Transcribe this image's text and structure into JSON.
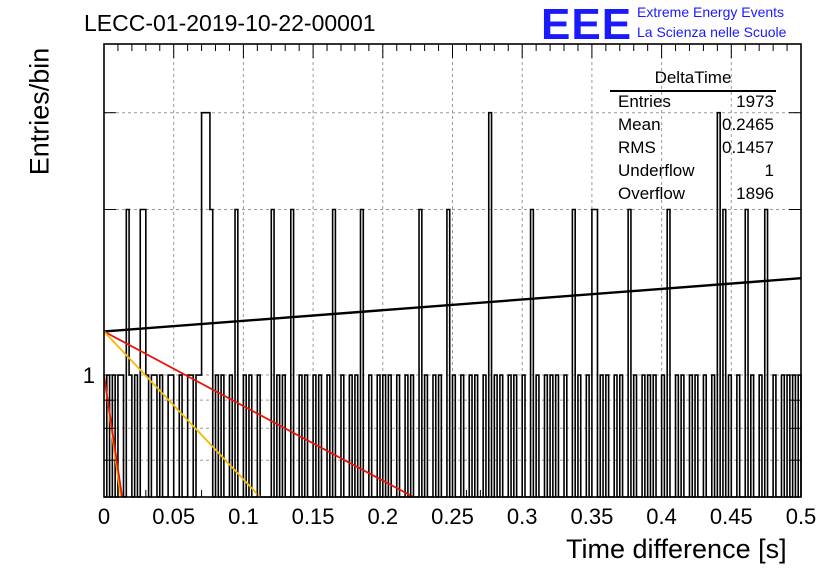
{
  "title": "LECC-01-2019-10-22-00001",
  "logo": {
    "mark": "EEE",
    "line1": "Extreme Energy Events",
    "line2": "La Scienza nelle Scuole"
  },
  "stats_box": {
    "title": "DeltaTime",
    "rows": [
      {
        "label": "Entries",
        "value": "1973"
      },
      {
        "label": "Mean",
        "value": "0.2465"
      },
      {
        "label": "RMS",
        "value": "0.1457"
      },
      {
        "label": "Underflow",
        "value": "1"
      },
      {
        "label": "Overflow",
        "value": "1896"
      }
    ]
  },
  "colors": {
    "histogram": "#000000",
    "fit_black": "#000000",
    "fit_red": "#e8140c",
    "fit_orange": "#f5b800",
    "grid": "#9a9a9a"
  },
  "chart_data": {
    "type": "histogram",
    "title": "LECC-01-2019-10-22-00001",
    "xlabel": "Time difference [s]",
    "ylabel": "Entries/bin",
    "xlim": [
      0,
      0.5
    ],
    "ylim": [
      0.6,
      4
    ],
    "yscale": "log",
    "xticks": [
      "0",
      "0.05",
      "0.1",
      "0.15",
      "0.2",
      "0.25",
      "0.3",
      "0.35",
      "0.4",
      "0.45",
      "0.5"
    ],
    "yticks": [
      "1"
    ],
    "grid": true,
    "bin_width": 0.002,
    "bins": [
      {
        "x": 0.002,
        "y": 1
      },
      {
        "x": 0.006,
        "y": 1
      },
      {
        "x": 0.01,
        "y": 1
      },
      {
        "x": 0.012,
        "y": 1
      },
      {
        "x": 0.016,
        "y": 2
      },
      {
        "x": 0.018,
        "y": 1
      },
      {
        "x": 0.022,
        "y": 1
      },
      {
        "x": 0.026,
        "y": 2
      },
      {
        "x": 0.028,
        "y": 2
      },
      {
        "x": 0.03,
        "y": 1
      },
      {
        "x": 0.034,
        "y": 1
      },
      {
        "x": 0.036,
        "y": 1
      },
      {
        "x": 0.04,
        "y": 1
      },
      {
        "x": 0.046,
        "y": 1
      },
      {
        "x": 0.048,
        "y": 1
      },
      {
        "x": 0.054,
        "y": 1
      },
      {
        "x": 0.06,
        "y": 1
      },
      {
        "x": 0.062,
        "y": 1
      },
      {
        "x": 0.066,
        "y": 1
      },
      {
        "x": 0.068,
        "y": 1
      },
      {
        "x": 0.07,
        "y": 3
      },
      {
        "x": 0.072,
        "y": 3
      },
      {
        "x": 0.074,
        "y": 3
      },
      {
        "x": 0.076,
        "y": 2
      },
      {
        "x": 0.08,
        "y": 1
      },
      {
        "x": 0.084,
        "y": 1
      },
      {
        "x": 0.09,
        "y": 1
      },
      {
        "x": 0.094,
        "y": 2
      },
      {
        "x": 0.1,
        "y": 1
      },
      {
        "x": 0.104,
        "y": 1
      },
      {
        "x": 0.11,
        "y": 1
      },
      {
        "x": 0.12,
        "y": 2
      },
      {
        "x": 0.124,
        "y": 1
      },
      {
        "x": 0.128,
        "y": 1
      },
      {
        "x": 0.134,
        "y": 2
      },
      {
        "x": 0.14,
        "y": 1
      },
      {
        "x": 0.144,
        "y": 1
      },
      {
        "x": 0.15,
        "y": 1
      },
      {
        "x": 0.154,
        "y": 1
      },
      {
        "x": 0.16,
        "y": 1
      },
      {
        "x": 0.164,
        "y": 2
      },
      {
        "x": 0.17,
        "y": 1
      },
      {
        "x": 0.176,
        "y": 1
      },
      {
        "x": 0.18,
        "y": 1
      },
      {
        "x": 0.184,
        "y": 2
      },
      {
        "x": 0.19,
        "y": 1
      },
      {
        "x": 0.196,
        "y": 1
      },
      {
        "x": 0.2,
        "y": 1
      },
      {
        "x": 0.204,
        "y": 1
      },
      {
        "x": 0.21,
        "y": 1
      },
      {
        "x": 0.216,
        "y": 1
      },
      {
        "x": 0.22,
        "y": 1
      },
      {
        "x": 0.226,
        "y": 2
      },
      {
        "x": 0.23,
        "y": 1
      },
      {
        "x": 0.236,
        "y": 1
      },
      {
        "x": 0.24,
        "y": 1
      },
      {
        "x": 0.246,
        "y": 2
      },
      {
        "x": 0.25,
        "y": 1
      },
      {
        "x": 0.256,
        "y": 1
      },
      {
        "x": 0.262,
        "y": 1
      },
      {
        "x": 0.266,
        "y": 1
      },
      {
        "x": 0.272,
        "y": 1
      },
      {
        "x": 0.276,
        "y": 3
      },
      {
        "x": 0.28,
        "y": 1
      },
      {
        "x": 0.284,
        "y": 1
      },
      {
        "x": 0.29,
        "y": 1
      },
      {
        "x": 0.294,
        "y": 1
      },
      {
        "x": 0.3,
        "y": 1
      },
      {
        "x": 0.306,
        "y": 2
      },
      {
        "x": 0.31,
        "y": 1
      },
      {
        "x": 0.316,
        "y": 1
      },
      {
        "x": 0.32,
        "y": 1
      },
      {
        "x": 0.324,
        "y": 1
      },
      {
        "x": 0.33,
        "y": 1
      },
      {
        "x": 0.336,
        "y": 2
      },
      {
        "x": 0.34,
        "y": 1
      },
      {
        "x": 0.346,
        "y": 1
      },
      {
        "x": 0.35,
        "y": 2
      },
      {
        "x": 0.352,
        "y": 2
      },
      {
        "x": 0.356,
        "y": 1
      },
      {
        "x": 0.36,
        "y": 1
      },
      {
        "x": 0.366,
        "y": 1
      },
      {
        "x": 0.37,
        "y": 1
      },
      {
        "x": 0.376,
        "y": 2
      },
      {
        "x": 0.38,
        "y": 1
      },
      {
        "x": 0.386,
        "y": 1
      },
      {
        "x": 0.39,
        "y": 1
      },
      {
        "x": 0.394,
        "y": 1
      },
      {
        "x": 0.4,
        "y": 1
      },
      {
        "x": 0.404,
        "y": 2
      },
      {
        "x": 0.41,
        "y": 1
      },
      {
        "x": 0.414,
        "y": 1
      },
      {
        "x": 0.42,
        "y": 1
      },
      {
        "x": 0.424,
        "y": 1
      },
      {
        "x": 0.43,
        "y": 1
      },
      {
        "x": 0.436,
        "y": 1
      },
      {
        "x": 0.44,
        "y": 3
      },
      {
        "x": 0.444,
        "y": 2
      },
      {
        "x": 0.448,
        "y": 1
      },
      {
        "x": 0.454,
        "y": 1
      },
      {
        "x": 0.46,
        "y": 2
      },
      {
        "x": 0.464,
        "y": 1
      },
      {
        "x": 0.47,
        "y": 1
      },
      {
        "x": 0.474,
        "y": 2
      },
      {
        "x": 0.48,
        "y": 1
      },
      {
        "x": 0.486,
        "y": 1
      },
      {
        "x": 0.49,
        "y": 1
      },
      {
        "x": 0.494,
        "y": 1
      },
      {
        "x": 0.498,
        "y": 1
      }
    ],
    "fits": [
      {
        "color": "#000000",
        "x": [
          0,
          0.5
        ],
        "y": [
          1.2,
          1.5
        ]
      },
      {
        "color": "#e8140c",
        "x": [
          0,
          0.222
        ],
        "y": [
          1.2,
          0.6
        ]
      },
      {
        "color": "#f5b800",
        "x": [
          0,
          0.112
        ],
        "y": [
          1.2,
          0.6
        ]
      },
      {
        "color": "#f5b800",
        "x": [
          0,
          0.012
        ],
        "y": [
          1.0,
          0.6
        ]
      },
      {
        "color": "#e8140c",
        "x": [
          0,
          0.013
        ],
        "y": [
          1.0,
          0.6
        ]
      }
    ]
  }
}
